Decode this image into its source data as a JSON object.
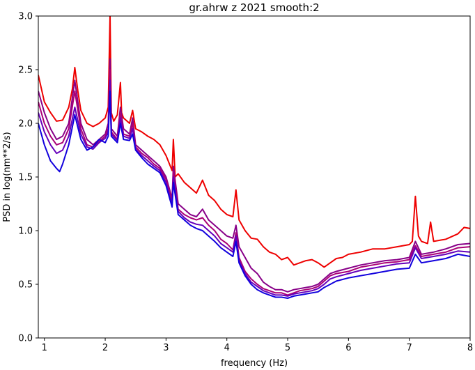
{
  "chart_data": {
    "type": "line",
    "title": "gr.ahrw z 2021 smooth:2",
    "xlabel": "frequency (Hz)",
    "ylabel": "PSD in log(nm**2/s)",
    "xlim": [
      0.9,
      8
    ],
    "ylim": [
      0,
      3
    ],
    "xticks": [
      1,
      2,
      3,
      4,
      5,
      6,
      7,
      8
    ],
    "xtick_labels": [
      "1",
      "2",
      "3",
      "4",
      "5",
      "6",
      "7",
      "8"
    ],
    "yticks": [
      0,
      0.5,
      1,
      1.5,
      2,
      2.5,
      3
    ],
    "ytick_labels": [
      "0.0",
      "0.5",
      "1.0",
      "1.5",
      "2.0",
      "2.5",
      "3.0"
    ],
    "grid": false,
    "legend": "none",
    "series": [
      {
        "color": "#ee0000",
        "x": [
          0.9,
          1.0,
          1.1,
          1.2,
          1.3,
          1.4,
          1.46,
          1.5,
          1.55,
          1.6,
          1.7,
          1.8,
          1.9,
          2.0,
          2.05,
          2.08,
          2.1,
          2.14,
          2.2,
          2.25,
          2.27,
          2.3,
          2.4,
          2.45,
          2.5,
          2.6,
          2.7,
          2.8,
          2.9,
          3.0,
          3.1,
          3.12,
          3.15,
          3.2,
          3.3,
          3.4,
          3.5,
          3.6,
          3.7,
          3.8,
          3.9,
          4.0,
          4.1,
          4.15,
          4.2,
          4.3,
          4.4,
          4.5,
          4.6,
          4.7,
          4.8,
          4.9,
          5.0,
          5.1,
          5.2,
          5.3,
          5.4,
          5.5,
          5.6,
          5.7,
          5.8,
          5.9,
          6.0,
          6.2,
          6.4,
          6.6,
          6.8,
          7.0,
          7.05,
          7.1,
          7.15,
          7.2,
          7.3,
          7.35,
          7.4,
          7.6,
          7.8,
          7.9,
          8.0
        ],
        "y": [
          2.45,
          2.2,
          2.1,
          2.02,
          2.03,
          2.15,
          2.32,
          2.52,
          2.3,
          2.12,
          2.0,
          1.97,
          2.0,
          2.05,
          2.15,
          3.0,
          2.1,
          2.02,
          2.08,
          2.38,
          2.1,
          2.05,
          2.0,
          2.12,
          1.95,
          1.92,
          1.88,
          1.85,
          1.8,
          1.7,
          1.56,
          1.85,
          1.5,
          1.53,
          1.45,
          1.4,
          1.35,
          1.47,
          1.33,
          1.28,
          1.2,
          1.15,
          1.13,
          1.38,
          1.1,
          1.0,
          0.93,
          0.92,
          0.85,
          0.8,
          0.78,
          0.73,
          0.75,
          0.68,
          0.7,
          0.72,
          0.73,
          0.7,
          0.66,
          0.7,
          0.74,
          0.75,
          0.78,
          0.8,
          0.83,
          0.83,
          0.85,
          0.87,
          0.9,
          1.32,
          0.95,
          0.9,
          0.88,
          1.08,
          0.9,
          0.92,
          0.97,
          1.03,
          1.02
        ]
      },
      {
        "color": "#880088",
        "x": [
          0.9,
          1.0,
          1.1,
          1.2,
          1.3,
          1.4,
          1.5,
          1.6,
          1.7,
          1.8,
          1.9,
          2.0,
          2.05,
          2.08,
          2.1,
          2.2,
          2.25,
          2.3,
          2.4,
          2.45,
          2.5,
          2.6,
          2.7,
          2.8,
          2.9,
          3.0,
          3.1,
          3.12,
          3.2,
          3.3,
          3.4,
          3.5,
          3.6,
          3.7,
          3.8,
          3.9,
          4.0,
          4.1,
          4.15,
          4.2,
          4.3,
          4.4,
          4.5,
          4.6,
          4.7,
          4.8,
          4.9,
          5.0,
          5.1,
          5.2,
          5.3,
          5.4,
          5.5,
          5.6,
          5.7,
          5.8,
          6.0,
          6.2,
          6.4,
          6.6,
          6.8,
          7.0,
          7.1,
          7.2,
          7.4,
          7.6,
          7.8,
          8.0
        ],
        "y": [
          2.3,
          2.1,
          1.95,
          1.85,
          1.88,
          2.0,
          2.4,
          2.0,
          1.85,
          1.8,
          1.85,
          1.9,
          2.0,
          2.6,
          1.95,
          1.88,
          2.15,
          1.95,
          1.9,
          2.05,
          1.8,
          1.75,
          1.7,
          1.65,
          1.6,
          1.5,
          1.3,
          1.6,
          1.25,
          1.2,
          1.15,
          1.13,
          1.2,
          1.1,
          1.05,
          1.0,
          0.95,
          0.93,
          1.05,
          0.85,
          0.75,
          0.65,
          0.6,
          0.52,
          0.48,
          0.45,
          0.45,
          0.43,
          0.45,
          0.46,
          0.47,
          0.48,
          0.5,
          0.55,
          0.6,
          0.62,
          0.65,
          0.68,
          0.7,
          0.72,
          0.73,
          0.75,
          0.9,
          0.78,
          0.8,
          0.83,
          0.87,
          0.88
        ]
      },
      {
        "color": "#aa0077",
        "x": [
          0.9,
          1.0,
          1.1,
          1.2,
          1.3,
          1.4,
          1.5,
          1.6,
          1.7,
          1.8,
          1.9,
          2.0,
          2.05,
          2.08,
          2.1,
          2.2,
          2.25,
          2.3,
          2.4,
          2.45,
          2.5,
          2.6,
          2.7,
          2.8,
          2.9,
          3.0,
          3.1,
          3.12,
          3.2,
          3.3,
          3.4,
          3.5,
          3.6,
          3.7,
          3.8,
          3.9,
          4.0,
          4.1,
          4.15,
          4.2,
          4.3,
          4.4,
          4.5,
          4.6,
          4.7,
          4.8,
          4.9,
          5.0,
          5.1,
          5.2,
          5.3,
          5.4,
          5.5,
          5.6,
          5.7,
          5.8,
          6.0,
          6.2,
          6.4,
          6.6,
          6.8,
          7.0,
          7.1,
          7.2,
          7.4,
          7.6,
          7.8,
          8.0
        ],
        "y": [
          2.2,
          2.0,
          1.88,
          1.8,
          1.82,
          1.95,
          2.3,
          1.95,
          1.8,
          1.78,
          1.83,
          1.88,
          1.95,
          2.5,
          1.92,
          1.85,
          2.1,
          1.9,
          1.88,
          2.0,
          1.78,
          1.72,
          1.68,
          1.62,
          1.58,
          1.48,
          1.28,
          1.55,
          1.2,
          1.15,
          1.12,
          1.1,
          1.12,
          1.05,
          1.0,
          0.92,
          0.88,
          0.82,
          0.98,
          0.75,
          0.62,
          0.55,
          0.5,
          0.46,
          0.44,
          0.42,
          0.42,
          0.4,
          0.42,
          0.44,
          0.45,
          0.46,
          0.48,
          0.53,
          0.58,
          0.6,
          0.62,
          0.66,
          0.68,
          0.7,
          0.71,
          0.73,
          0.86,
          0.76,
          0.78,
          0.8,
          0.84,
          0.85
        ]
      },
      {
        "color": "#6600bb",
        "x": [
          0.9,
          1.0,
          1.1,
          1.2,
          1.3,
          1.4,
          1.5,
          1.6,
          1.7,
          1.8,
          1.9,
          2.0,
          2.05,
          2.08,
          2.1,
          2.2,
          2.25,
          2.3,
          2.4,
          2.45,
          2.5,
          2.6,
          2.7,
          2.8,
          2.9,
          3.0,
          3.1,
          3.12,
          3.2,
          3.3,
          3.4,
          3.5,
          3.6,
          3.7,
          3.8,
          3.9,
          4.0,
          4.1,
          4.15,
          4.2,
          4.3,
          4.4,
          4.5,
          4.6,
          4.7,
          4.8,
          4.9,
          5.0,
          5.1,
          5.2,
          5.3,
          5.4,
          5.5,
          5.6,
          5.7,
          5.8,
          6.0,
          6.2,
          6.4,
          6.6,
          6.8,
          7.0,
          7.1,
          7.2,
          7.4,
          7.6,
          7.8,
          8.0
        ],
        "y": [
          2.1,
          1.92,
          1.8,
          1.72,
          1.75,
          1.88,
          2.15,
          1.9,
          1.78,
          1.76,
          1.82,
          1.86,
          1.92,
          2.4,
          1.9,
          1.84,
          2.05,
          1.88,
          1.86,
          1.95,
          1.76,
          1.7,
          1.65,
          1.6,
          1.56,
          1.45,
          1.25,
          1.5,
          1.18,
          1.12,
          1.08,
          1.06,
          1.05,
          1.0,
          0.95,
          0.88,
          0.84,
          0.8,
          0.95,
          0.72,
          0.6,
          0.52,
          0.48,
          0.44,
          0.42,
          0.4,
          0.4,
          0.39,
          0.41,
          0.42,
          0.43,
          0.44,
          0.46,
          0.5,
          0.55,
          0.57,
          0.6,
          0.63,
          0.65,
          0.67,
          0.69,
          0.7,
          0.84,
          0.74,
          0.76,
          0.78,
          0.81,
          0.8
        ]
      },
      {
        "color": "#1100dd",
        "x": [
          0.9,
          1.0,
          1.1,
          1.2,
          1.25,
          1.3,
          1.4,
          1.5,
          1.6,
          1.7,
          1.8,
          1.9,
          2.0,
          2.05,
          2.08,
          2.1,
          2.2,
          2.25,
          2.3,
          2.4,
          2.45,
          2.5,
          2.6,
          2.7,
          2.8,
          2.9,
          3.0,
          3.1,
          3.12,
          3.2,
          3.3,
          3.4,
          3.5,
          3.6,
          3.7,
          3.8,
          3.9,
          4.0,
          4.1,
          4.15,
          4.2,
          4.3,
          4.4,
          4.5,
          4.6,
          4.7,
          4.8,
          4.9,
          5.0,
          5.1,
          5.2,
          5.3,
          5.4,
          5.5,
          5.6,
          5.7,
          5.8,
          6.0,
          6.2,
          6.4,
          6.6,
          6.8,
          7.0,
          7.1,
          7.2,
          7.4,
          7.6,
          7.8,
          8.0
        ],
        "y": [
          2.0,
          1.8,
          1.65,
          1.58,
          1.55,
          1.62,
          1.8,
          2.08,
          1.85,
          1.75,
          1.78,
          1.85,
          1.82,
          1.88,
          2.3,
          1.88,
          1.82,
          2.0,
          1.85,
          1.84,
          1.9,
          1.75,
          1.68,
          1.62,
          1.58,
          1.54,
          1.42,
          1.22,
          1.45,
          1.15,
          1.1,
          1.05,
          1.02,
          1.0,
          0.95,
          0.9,
          0.84,
          0.8,
          0.76,
          0.9,
          0.7,
          0.58,
          0.5,
          0.45,
          0.42,
          0.4,
          0.38,
          0.38,
          0.37,
          0.39,
          0.4,
          0.41,
          0.42,
          0.43,
          0.47,
          0.5,
          0.53,
          0.56,
          0.58,
          0.6,
          0.62,
          0.64,
          0.65,
          0.78,
          0.7,
          0.72,
          0.74,
          0.78,
          0.76
        ]
      }
    ]
  }
}
